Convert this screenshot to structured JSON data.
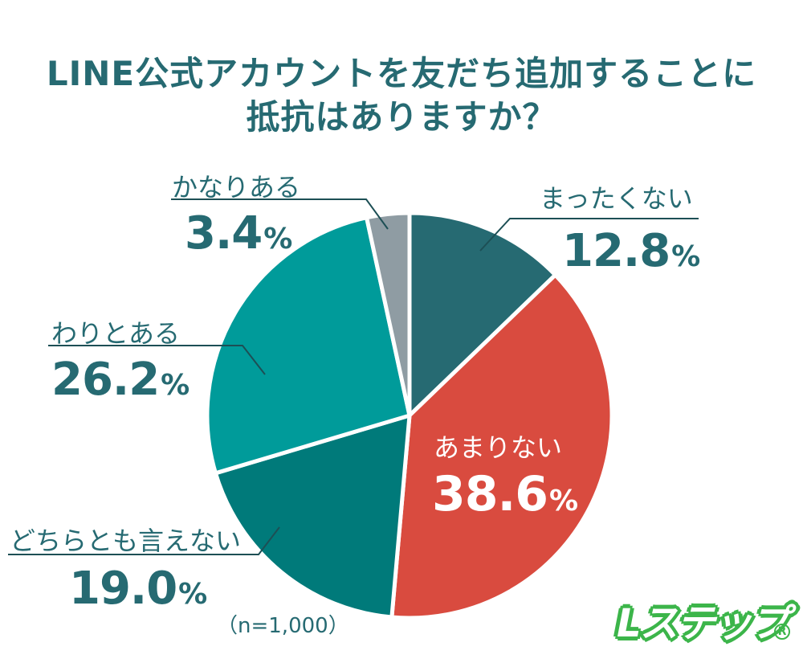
{
  "title": {
    "line1": "LINE公式アカウントを友だち追加することに",
    "line2": "抵抗はありますか？"
  },
  "chart_data": {
    "type": "pie",
    "title": "LINE公式アカウントを友だち追加することに抵抗はありますか？",
    "categories": [
      "まったくない",
      "あまりない",
      "どちらとも言えない",
      "わりとある",
      "かなりある"
    ],
    "values": [
      12.8,
      38.6,
      19.0,
      26.2,
      3.4
    ],
    "unit": "%",
    "colors": [
      "#266a72",
      "#d94b3f",
      "#007a7a",
      "#009b9a",
      "#8f9ca3"
    ],
    "start_angle": "12 o'clock, clockwise",
    "sample_size": "(n=1,000)"
  },
  "labels": [
    {
      "name": "まったくない",
      "value": "12.8",
      "unit": "%"
    },
    {
      "name": "あまりない",
      "value": "38.6",
      "unit": "%"
    },
    {
      "name": "どちらとも言えない",
      "value": "19.0",
      "unit": "%"
    },
    {
      "name": "わりとある",
      "value": "26.2",
      "unit": "%"
    },
    {
      "name": "かなりある",
      "value": "3.4",
      "unit": "%"
    }
  ],
  "footnote": "（n=1,000）",
  "logo": {
    "text": "Lステップ",
    "mark": "R"
  }
}
